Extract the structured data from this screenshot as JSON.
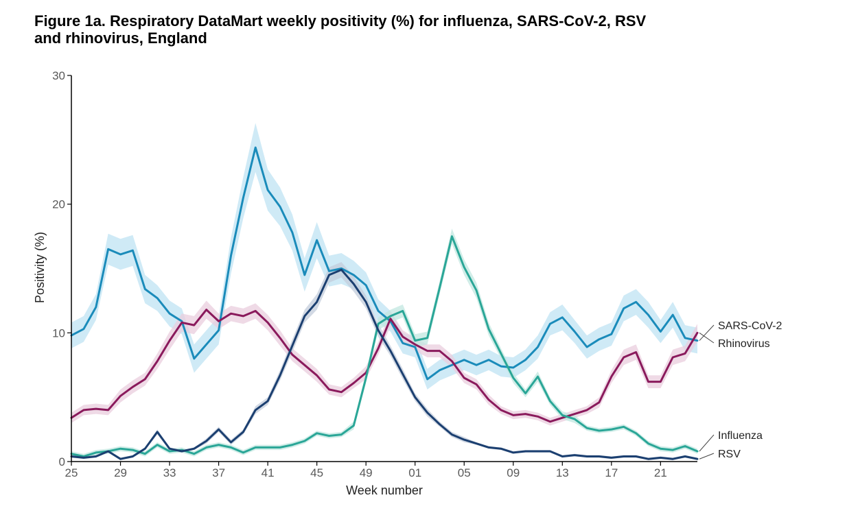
{
  "chart_data": {
    "type": "line",
    "title": "Figure 1a. Respiratory DataMart weekly positivity (%) for influenza, SARS-CoV-2, RSV\nand rhinovirus, England",
    "xlabel": "Week number",
    "ylabel": "Positivity (%)",
    "ylim": [
      0,
      30
    ],
    "yticks": [
      "0",
      "10",
      "20",
      "30"
    ],
    "xticks": [
      "25",
      "29",
      "33",
      "37",
      "41",
      "45",
      "49",
      "01",
      "05",
      "09",
      "13",
      "17",
      "21"
    ],
    "x": [
      "25",
      "26",
      "27",
      "28",
      "29",
      "30",
      "31",
      "32",
      "33",
      "34",
      "35",
      "36",
      "37",
      "38",
      "39",
      "40",
      "41",
      "42",
      "43",
      "44",
      "45",
      "46",
      "47",
      "48",
      "49",
      "50",
      "51",
      "52",
      "01",
      "02",
      "03",
      "04",
      "05",
      "06",
      "07",
      "08",
      "09",
      "10",
      "11",
      "12",
      "13",
      "14",
      "15",
      "16",
      "17",
      "18",
      "19",
      "20",
      "21",
      "22",
      "23",
      "24"
    ],
    "grid": false,
    "legend": "inline labels at right end of lines",
    "series": [
      {
        "name": "SARS-CoV-2",
        "color": "#1a8bba",
        "band_color": "#bfe3f3",
        "values": [
          9.8,
          10.3,
          12.0,
          16.5,
          16.1,
          16.4,
          13.4,
          12.7,
          11.5,
          10.9,
          8.0,
          9.1,
          10.2,
          16.0,
          20.5,
          24.4,
          21.1,
          19.8,
          17.8,
          14.5,
          17.2,
          14.8,
          15.0,
          14.5,
          13.7,
          11.7,
          10.9,
          9.2,
          8.9,
          6.4,
          7.1,
          7.5,
          7.9,
          7.5,
          7.9,
          7.4,
          7.3,
          7.9,
          8.9,
          10.7,
          11.2,
          10.1,
          8.9,
          9.5,
          9.9,
          11.9,
          12.4,
          11.4,
          10.1,
          11.4,
          9.6,
          9.4
        ],
        "band": [
          1.0,
          1.0,
          1.0,
          1.2,
          1.2,
          1.2,
          1.1,
          1.0,
          1.0,
          1.0,
          1.1,
          1.1,
          1.1,
          1.4,
          1.6,
          1.9,
          1.6,
          1.5,
          1.4,
          1.3,
          1.4,
          1.2,
          1.2,
          1.1,
          1.0,
          0.9,
          0.8,
          0.8,
          0.8,
          0.8,
          0.8,
          0.8,
          0.8,
          0.8,
          0.8,
          0.8,
          0.8,
          0.8,
          0.9,
          0.9,
          1.0,
          0.9,
          0.9,
          0.9,
          0.9,
          1.0,
          1.0,
          1.0,
          0.9,
          1.0,
          1.0,
          1.0
        ]
      },
      {
        "name": "Rhinovirus",
        "color": "#8a1a5c",
        "band_color": "#e9cede",
        "values": [
          3.4,
          4.0,
          4.1,
          4.0,
          5.1,
          5.8,
          6.4,
          7.8,
          9.4,
          10.8,
          10.6,
          11.8,
          10.9,
          11.5,
          11.3,
          11.7,
          10.8,
          9.6,
          8.3,
          7.5,
          6.7,
          5.6,
          5.4,
          6.1,
          6.9,
          8.8,
          11.1,
          9.7,
          9.1,
          8.6,
          8.6,
          7.8,
          6.5,
          6.0,
          4.8,
          4.0,
          3.6,
          3.7,
          3.5,
          3.1,
          3.4,
          3.7,
          4.0,
          4.6,
          6.6,
          8.1,
          8.5,
          6.2,
          6.2,
          8.1,
          8.4,
          10.0
        ],
        "band": [
          0.4,
          0.4,
          0.4,
          0.4,
          0.5,
          0.5,
          0.5,
          0.6,
          0.7,
          0.7,
          0.7,
          0.7,
          0.6,
          0.6,
          0.6,
          0.6,
          0.6,
          0.6,
          0.5,
          0.5,
          0.5,
          0.4,
          0.4,
          0.4,
          0.5,
          0.5,
          0.6,
          0.5,
          0.5,
          0.5,
          0.5,
          0.5,
          0.4,
          0.4,
          0.4,
          0.3,
          0.3,
          0.3,
          0.3,
          0.3,
          0.3,
          0.3,
          0.3,
          0.4,
          0.5,
          0.6,
          0.6,
          0.5,
          0.5,
          0.6,
          0.6,
          0.7
        ]
      },
      {
        "name": "Influenza",
        "color": "#2aa697",
        "band_color": "#c2e7e0",
        "values": [
          0.6,
          0.4,
          0.7,
          0.8,
          1.0,
          0.9,
          0.6,
          1.3,
          0.8,
          0.9,
          0.6,
          1.1,
          1.3,
          1.1,
          0.7,
          1.1,
          1.1,
          1.1,
          1.3,
          1.6,
          2.2,
          2.0,
          2.1,
          2.8,
          6.5,
          10.7,
          11.3,
          11.7,
          9.4,
          9.6,
          13.5,
          17.5,
          15.1,
          13.3,
          10.3,
          8.4,
          6.5,
          5.3,
          6.6,
          4.7,
          3.6,
          3.3,
          2.6,
          2.4,
          2.5,
          2.7,
          2.2,
          1.4,
          1.0,
          0.9,
          1.2,
          0.8
        ],
        "band": [
          0.2,
          0.2,
          0.2,
          0.2,
          0.2,
          0.2,
          0.2,
          0.2,
          0.2,
          0.2,
          0.2,
          0.2,
          0.2,
          0.2,
          0.2,
          0.2,
          0.2,
          0.2,
          0.2,
          0.2,
          0.2,
          0.2,
          0.2,
          0.3,
          0.4,
          0.5,
          0.5,
          0.5,
          0.5,
          0.5,
          0.5,
          0.6,
          0.6,
          0.6,
          0.5,
          0.4,
          0.4,
          0.3,
          0.4,
          0.3,
          0.3,
          0.3,
          0.2,
          0.2,
          0.2,
          0.2,
          0.2,
          0.2,
          0.2,
          0.2,
          0.2,
          0.2
        ]
      },
      {
        "name": "RSV",
        "color": "#1b3f70",
        "band_color": "#c3ccdb",
        "values": [
          0.4,
          0.3,
          0.4,
          0.8,
          0.2,
          0.4,
          1.0,
          2.3,
          1.0,
          0.8,
          1.0,
          1.6,
          2.5,
          1.5,
          2.3,
          4.0,
          4.7,
          6.7,
          9.0,
          11.3,
          12.4,
          14.5,
          14.9,
          13.8,
          12.4,
          10.2,
          8.6,
          6.8,
          5.0,
          3.8,
          2.9,
          2.1,
          1.7,
          1.4,
          1.1,
          1.0,
          0.7,
          0.8,
          0.8,
          0.8,
          0.4,
          0.5,
          0.4,
          0.4,
          0.3,
          0.4,
          0.4,
          0.2,
          0.3,
          0.2,
          0.4,
          0.2
        ],
        "band": [
          0.1,
          0.1,
          0.1,
          0.1,
          0.1,
          0.1,
          0.1,
          0.2,
          0.1,
          0.1,
          0.1,
          0.2,
          0.2,
          0.2,
          0.2,
          0.3,
          0.3,
          0.4,
          0.5,
          0.5,
          0.6,
          0.6,
          0.6,
          0.6,
          0.5,
          0.5,
          0.4,
          0.4,
          0.3,
          0.3,
          0.2,
          0.2,
          0.2,
          0.1,
          0.1,
          0.1,
          0.1,
          0.1,
          0.1,
          0.1,
          0.1,
          0.1,
          0.1,
          0.1,
          0.1,
          0.1,
          0.1,
          0.1,
          0.1,
          0.1,
          0.1,
          0.1
        ]
      }
    ]
  }
}
